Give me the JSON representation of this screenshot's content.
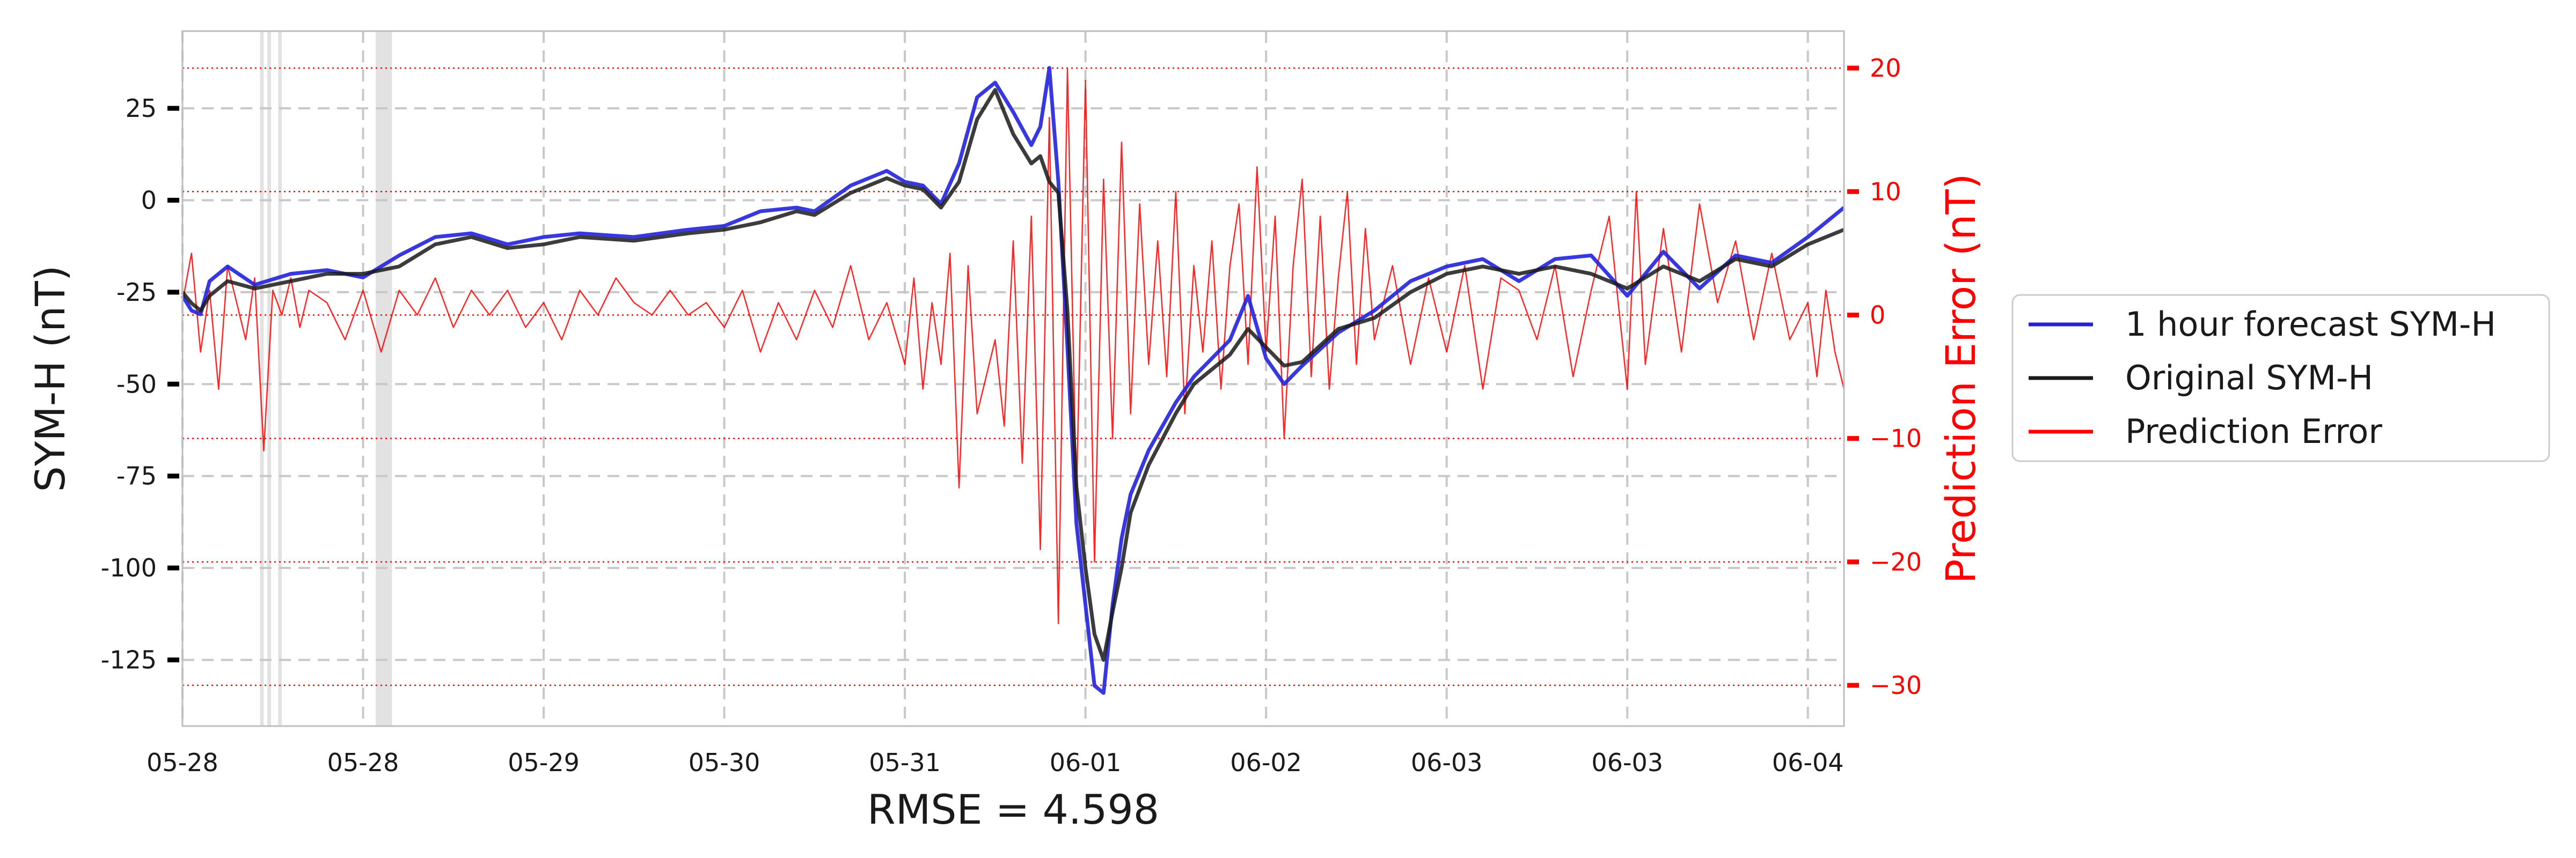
{
  "chart_data": {
    "type": "line",
    "title": "",
    "xlabel": "RMSE = 4.598",
    "ylabel": "SYM-H (nT)",
    "ylabel_right": "Prediction Error (nT)",
    "x_tick_labels": [
      "05-28",
      "05-28",
      "05-29",
      "05-30",
      "05-31",
      "06-01",
      "06-02",
      "06-03",
      "06-03",
      "06-04"
    ],
    "x_tick_positions": [
      0,
      1,
      2,
      3,
      4,
      5,
      6,
      7,
      8,
      9
    ],
    "xlim": [
      0,
      9.2
    ],
    "ylim_left": [
      -143,
      46
    ],
    "ylim_right": [
      -33.3,
      23.0
    ],
    "y_ticks_left": [
      25,
      0,
      -25,
      -50,
      -75,
      -100,
      -125
    ],
    "y_tick_labels_left": [
      "25",
      "0",
      "-25",
      "-50",
      "-75",
      "-100",
      "-125"
    ],
    "y_ticks_right": [
      20,
      10,
      0,
      -10,
      -20,
      -30
    ],
    "y_tick_labels_right": [
      "20",
      "10",
      "0",
      "−10",
      "−20",
      "−30"
    ],
    "grid": true,
    "legend_position": "outside-right",
    "legend": [
      "1 hour forecast SYM-H",
      "Original SYM-H",
      "Prediction Error"
    ],
    "colors": {
      "forecast": "#2222dd",
      "original": "#1a1a1a",
      "error": "#ff0000",
      "grid": "#c8c8c8",
      "shade": "#d8d8d8"
    },
    "shaded_regions": [
      [
        0.43,
        0.45
      ],
      [
        0.47,
        0.49
      ],
      [
        0.53,
        0.55
      ],
      [
        1.07,
        1.16
      ]
    ],
    "original_points": [
      [
        0,
        -25
      ],
      [
        0.05,
        -28
      ],
      [
        0.1,
        -30
      ],
      [
        0.15,
        -26
      ],
      [
        0.25,
        -22
      ],
      [
        0.4,
        -24
      ],
      [
        0.6,
        -22
      ],
      [
        0.8,
        -20
      ],
      [
        1.0,
        -20
      ],
      [
        1.2,
        -18
      ],
      [
        1.4,
        -12
      ],
      [
        1.6,
        -10
      ],
      [
        1.8,
        -13
      ],
      [
        2.0,
        -12
      ],
      [
        2.2,
        -10
      ],
      [
        2.5,
        -11
      ],
      [
        2.8,
        -9
      ],
      [
        3.0,
        -8
      ],
      [
        3.2,
        -6
      ],
      [
        3.4,
        -3
      ],
      [
        3.5,
        -4
      ],
      [
        3.7,
        2
      ],
      [
        3.9,
        6
      ],
      [
        4.0,
        4
      ],
      [
        4.1,
        3
      ],
      [
        4.2,
        -2
      ],
      [
        4.3,
        5
      ],
      [
        4.4,
        22
      ],
      [
        4.5,
        30
      ],
      [
        4.6,
        18
      ],
      [
        4.7,
        10
      ],
      [
        4.75,
        12
      ],
      [
        4.8,
        5
      ],
      [
        4.85,
        2
      ],
      [
        4.9,
        -30
      ],
      [
        4.95,
        -78
      ],
      [
        5.0,
        -100
      ],
      [
        5.05,
        -118
      ],
      [
        5.1,
        -125
      ],
      [
        5.15,
        -112
      ],
      [
        5.2,
        -100
      ],
      [
        5.25,
        -85
      ],
      [
        5.35,
        -72
      ],
      [
        5.5,
        -58
      ],
      [
        5.6,
        -50
      ],
      [
        5.8,
        -42
      ],
      [
        5.9,
        -35
      ],
      [
        6.0,
        -40
      ],
      [
        6.1,
        -45
      ],
      [
        6.2,
        -44
      ],
      [
        6.4,
        -35
      ],
      [
        6.6,
        -32
      ],
      [
        6.8,
        -25
      ],
      [
        7.0,
        -20
      ],
      [
        7.2,
        -18
      ],
      [
        7.4,
        -20
      ],
      [
        7.6,
        -18
      ],
      [
        7.8,
        -20
      ],
      [
        8.0,
        -24
      ],
      [
        8.2,
        -18
      ],
      [
        8.4,
        -22
      ],
      [
        8.6,
        -16
      ],
      [
        8.8,
        -18
      ],
      [
        9.0,
        -12
      ],
      [
        9.2,
        -8
      ]
    ],
    "forecast_points": [
      [
        0,
        -26
      ],
      [
        0.05,
        -30
      ],
      [
        0.1,
        -31
      ],
      [
        0.15,
        -22
      ],
      [
        0.25,
        -18
      ],
      [
        0.4,
        -23
      ],
      [
        0.6,
        -20
      ],
      [
        0.8,
        -19
      ],
      [
        1.0,
        -21
      ],
      [
        1.2,
        -15
      ],
      [
        1.4,
        -10
      ],
      [
        1.6,
        -9
      ],
      [
        1.8,
        -12
      ],
      [
        2.0,
        -10
      ],
      [
        2.2,
        -9
      ],
      [
        2.5,
        -10
      ],
      [
        2.8,
        -8
      ],
      [
        3.0,
        -7
      ],
      [
        3.2,
        -3
      ],
      [
        3.4,
        -2
      ],
      [
        3.5,
        -3
      ],
      [
        3.7,
        4
      ],
      [
        3.9,
        8
      ],
      [
        4.0,
        5
      ],
      [
        4.1,
        4
      ],
      [
        4.2,
        -1
      ],
      [
        4.3,
        10
      ],
      [
        4.4,
        28
      ],
      [
        4.5,
        32
      ],
      [
        4.6,
        24
      ],
      [
        4.7,
        15
      ],
      [
        4.75,
        20
      ],
      [
        4.8,
        36
      ],
      [
        4.85,
        5
      ],
      [
        4.9,
        -40
      ],
      [
        4.95,
        -88
      ],
      [
        5.0,
        -110
      ],
      [
        5.05,
        -132
      ],
      [
        5.1,
        -134
      ],
      [
        5.15,
        -110
      ],
      [
        5.2,
        -92
      ],
      [
        5.25,
        -80
      ],
      [
        5.35,
        -68
      ],
      [
        5.5,
        -55
      ],
      [
        5.6,
        -48
      ],
      [
        5.8,
        -38
      ],
      [
        5.9,
        -26
      ],
      [
        6.0,
        -43
      ],
      [
        6.1,
        -50
      ],
      [
        6.2,
        -45
      ],
      [
        6.4,
        -36
      ],
      [
        6.6,
        -30
      ],
      [
        6.8,
        -22
      ],
      [
        7.0,
        -18
      ],
      [
        7.2,
        -16
      ],
      [
        7.4,
        -22
      ],
      [
        7.6,
        -16
      ],
      [
        7.8,
        -15
      ],
      [
        8.0,
        -26
      ],
      [
        8.2,
        -14
      ],
      [
        8.4,
        -24
      ],
      [
        8.6,
        -15
      ],
      [
        8.8,
        -17
      ],
      [
        9.0,
        -10
      ],
      [
        9.2,
        -2
      ]
    ],
    "error_points": [
      [
        0,
        1
      ],
      [
        0.05,
        5
      ],
      [
        0.1,
        -3
      ],
      [
        0.15,
        2
      ],
      [
        0.2,
        -6
      ],
      [
        0.25,
        4
      ],
      [
        0.3,
        1
      ],
      [
        0.35,
        -2
      ],
      [
        0.4,
        3
      ],
      [
        0.45,
        -11
      ],
      [
        0.5,
        2
      ],
      [
        0.55,
        0
      ],
      [
        0.6,
        3
      ],
      [
        0.65,
        -1
      ],
      [
        0.7,
        2
      ],
      [
        0.8,
        1
      ],
      [
        0.9,
        -2
      ],
      [
        1.0,
        2
      ],
      [
        1.1,
        -3
      ],
      [
        1.2,
        2
      ],
      [
        1.3,
        0
      ],
      [
        1.4,
        3
      ],
      [
        1.5,
        -1
      ],
      [
        1.6,
        2
      ],
      [
        1.7,
        0
      ],
      [
        1.8,
        2
      ],
      [
        1.9,
        -1
      ],
      [
        2.0,
        1
      ],
      [
        2.1,
        -2
      ],
      [
        2.2,
        2
      ],
      [
        2.3,
        0
      ],
      [
        2.4,
        3
      ],
      [
        2.5,
        1
      ],
      [
        2.6,
        0
      ],
      [
        2.7,
        2
      ],
      [
        2.8,
        0
      ],
      [
        2.9,
        1
      ],
      [
        3.0,
        -1
      ],
      [
        3.1,
        2
      ],
      [
        3.2,
        -3
      ],
      [
        3.3,
        1
      ],
      [
        3.4,
        -2
      ],
      [
        3.5,
        2
      ],
      [
        3.6,
        -1
      ],
      [
        3.7,
        4
      ],
      [
        3.8,
        -2
      ],
      [
        3.9,
        1
      ],
      [
        4.0,
        -4
      ],
      [
        4.05,
        3
      ],
      [
        4.1,
        -6
      ],
      [
        4.15,
        1
      ],
      [
        4.2,
        -4
      ],
      [
        4.25,
        5
      ],
      [
        4.3,
        -14
      ],
      [
        4.35,
        4
      ],
      [
        4.4,
        -8
      ],
      [
        4.5,
        -2
      ],
      [
        4.55,
        -9
      ],
      [
        4.6,
        6
      ],
      [
        4.65,
        -12
      ],
      [
        4.7,
        8
      ],
      [
        4.75,
        -19
      ],
      [
        4.8,
        16
      ],
      [
        4.85,
        -25
      ],
      [
        4.9,
        20
      ],
      [
        4.95,
        -15
      ],
      [
        5.0,
        19
      ],
      [
        5.05,
        -20
      ],
      [
        5.1,
        11
      ],
      [
        5.15,
        -10
      ],
      [
        5.2,
        14
      ],
      [
        5.25,
        -8
      ],
      [
        5.3,
        9
      ],
      [
        5.35,
        -4
      ],
      [
        5.4,
        6
      ],
      [
        5.45,
        -5
      ],
      [
        5.5,
        10
      ],
      [
        5.55,
        -8
      ],
      [
        5.6,
        4
      ],
      [
        5.65,
        -3
      ],
      [
        5.7,
        6
      ],
      [
        5.75,
        -6
      ],
      [
        5.8,
        4
      ],
      [
        5.85,
        9
      ],
      [
        5.9,
        -4
      ],
      [
        5.95,
        12
      ],
      [
        6.0,
        -3
      ],
      [
        6.05,
        8
      ],
      [
        6.1,
        -10
      ],
      [
        6.15,
        4
      ],
      [
        6.2,
        11
      ],
      [
        6.25,
        -5
      ],
      [
        6.3,
        8
      ],
      [
        6.35,
        -6
      ],
      [
        6.4,
        3
      ],
      [
        6.45,
        10
      ],
      [
        6.5,
        -4
      ],
      [
        6.55,
        7
      ],
      [
        6.6,
        -2
      ],
      [
        6.7,
        4
      ],
      [
        6.8,
        -4
      ],
      [
        6.9,
        3
      ],
      [
        7.0,
        -3
      ],
      [
        7.1,
        4
      ],
      [
        7.2,
        -6
      ],
      [
        7.3,
        3
      ],
      [
        7.4,
        2
      ],
      [
        7.5,
        -2
      ],
      [
        7.6,
        4
      ],
      [
        7.7,
        -5
      ],
      [
        7.8,
        2
      ],
      [
        7.9,
        8
      ],
      [
        8.0,
        -6
      ],
      [
        8.05,
        10
      ],
      [
        8.1,
        -4
      ],
      [
        8.2,
        7
      ],
      [
        8.3,
        -3
      ],
      [
        8.4,
        9
      ],
      [
        8.5,
        1
      ],
      [
        8.6,
        6
      ],
      [
        8.7,
        -2
      ],
      [
        8.8,
        5
      ],
      [
        8.9,
        -2
      ],
      [
        9.0,
        1
      ],
      [
        9.05,
        -5
      ],
      [
        9.1,
        2
      ],
      [
        9.15,
        -3
      ],
      [
        9.2,
        -6
      ]
    ]
  }
}
